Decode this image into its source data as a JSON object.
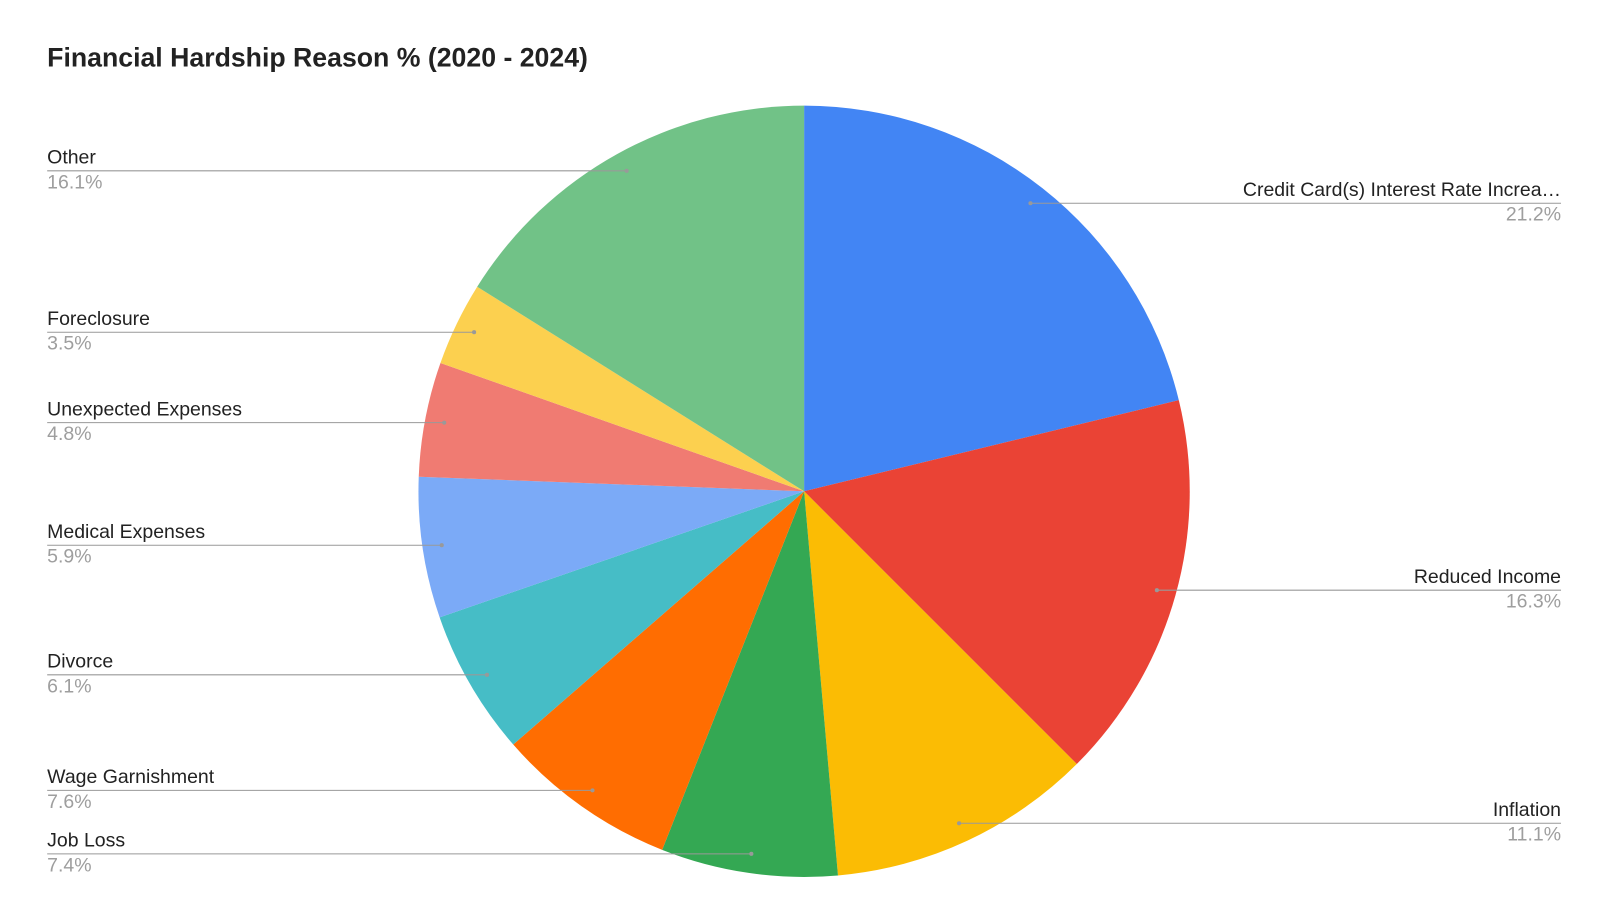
{
  "chart_data": {
    "type": "pie",
    "title": "Financial Hardship Reason % (2020 - 2024)",
    "categories": [
      "Credit Card(s) Interest Rate Increa…",
      "Reduced Income",
      "Inflation",
      "Job Loss",
      "Wage Garnishment",
      "Divorce",
      "Medical Expenses",
      "Unexpected Expenses",
      "Foreclosure",
      "Other"
    ],
    "values": [
      21.2,
      16.3,
      11.1,
      7.4,
      7.6,
      6.1,
      5.9,
      4.8,
      3.5,
      16.1
    ],
    "value_labels": [
      "21.2%",
      "16.3%",
      "11.1%",
      "7.4%",
      "7.6%",
      "6.1%",
      "5.9%",
      "4.8%",
      "3.5%",
      "16.1%"
    ],
    "colors": [
      "#4285f4",
      "#ea4335",
      "#fbbc04",
      "#34a853",
      "#ff6d01",
      "#46bdc6",
      "#7baaf7",
      "#f07b72",
      "#fcd04f",
      "#71c287"
    ]
  }
}
